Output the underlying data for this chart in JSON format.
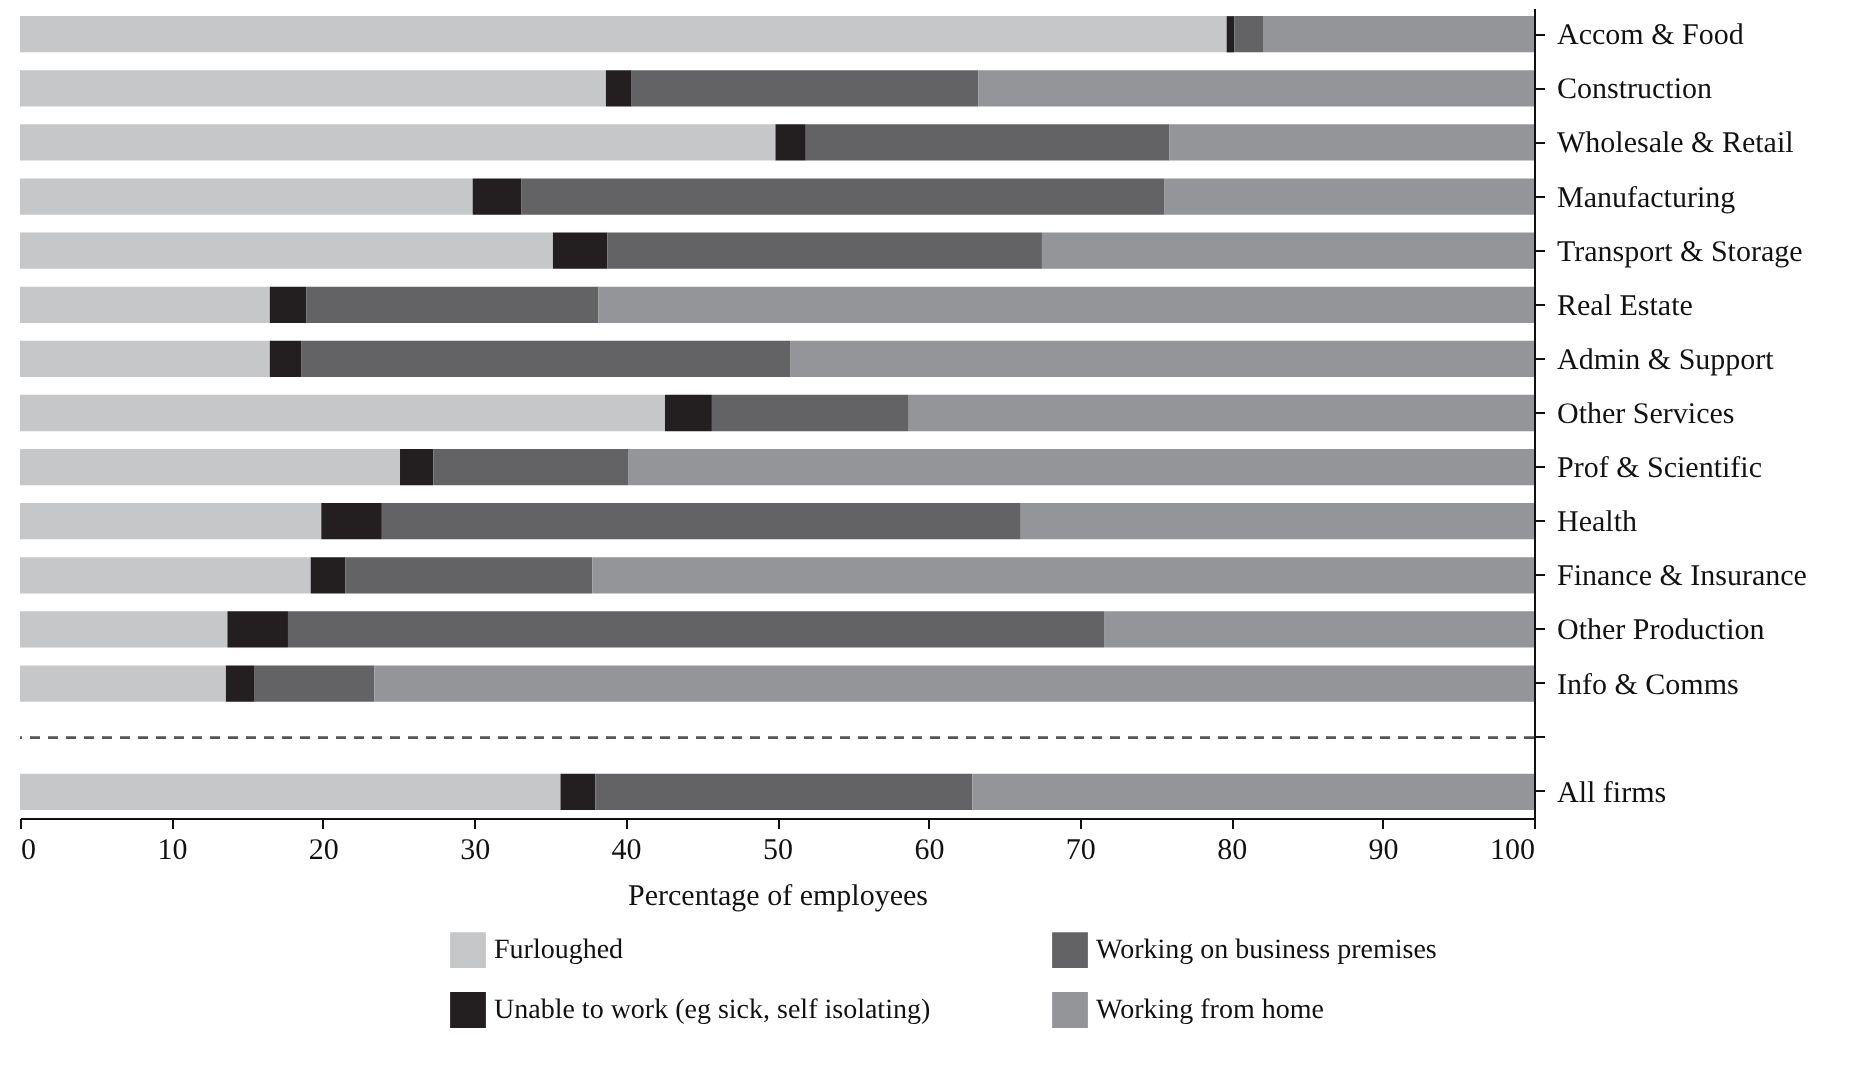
{
  "chart_data": {
    "type": "bar",
    "orientation": "horizontal",
    "stacked": true,
    "xlabel": "Percentage of employees",
    "categories": [
      "Accom & Food",
      "Construction",
      "Wholesale & Retail",
      "Manufacturing",
      "Transport & Storage",
      "Real Estate",
      "Admin & Support",
      "Other Services",
      "Prof & Scientific",
      "Health",
      "Finance & Insurance",
      "Other Production",
      "Info & Comms",
      null,
      "All firms"
    ],
    "series": [
      {
        "name": "Furloughed",
        "color": "#c6c7c9",
        "values": [
          79.7,
          38.7,
          49.9,
          29.9,
          35.2,
          16.5,
          16.5,
          42.6,
          25.1,
          19.9,
          19.2,
          13.7,
          13.6,
          null,
          35.7
        ]
      },
      {
        "name": "Unable to work (eg sick, self isolating)",
        "color": "#231f20",
        "values": [
          0.5,
          1.7,
          2.0,
          3.2,
          3.6,
          2.4,
          2.1,
          3.1,
          2.2,
          4.0,
          2.3,
          4.0,
          1.9,
          null,
          2.3
        ]
      },
      {
        "name": "Working on business premises",
        "color": "#636365",
        "values": [
          1.9,
          22.9,
          24.0,
          42.5,
          28.7,
          19.3,
          32.3,
          13.0,
          12.9,
          42.2,
          16.3,
          53.9,
          7.9,
          null,
          24.9
        ]
      },
      {
        "name": "Working from home",
        "color": "#939598",
        "values": [
          17.9,
          36.7,
          24.1,
          24.4,
          32.5,
          61.8,
          49.1,
          41.3,
          59.8,
          33.9,
          62.2,
          28.4,
          76.6,
          null,
          37.1
        ]
      }
    ],
    "xlim": [
      0,
      100
    ],
    "xticks": [
      0,
      10,
      20,
      30,
      40,
      50,
      60,
      70,
      80,
      90,
      100
    ],
    "ref_lines": [
      {
        "axis": "y",
        "value": null,
        "line_style": "dashed",
        "color": "#555555"
      }
    ],
    "grid": false,
    "legend": "bottom"
  }
}
